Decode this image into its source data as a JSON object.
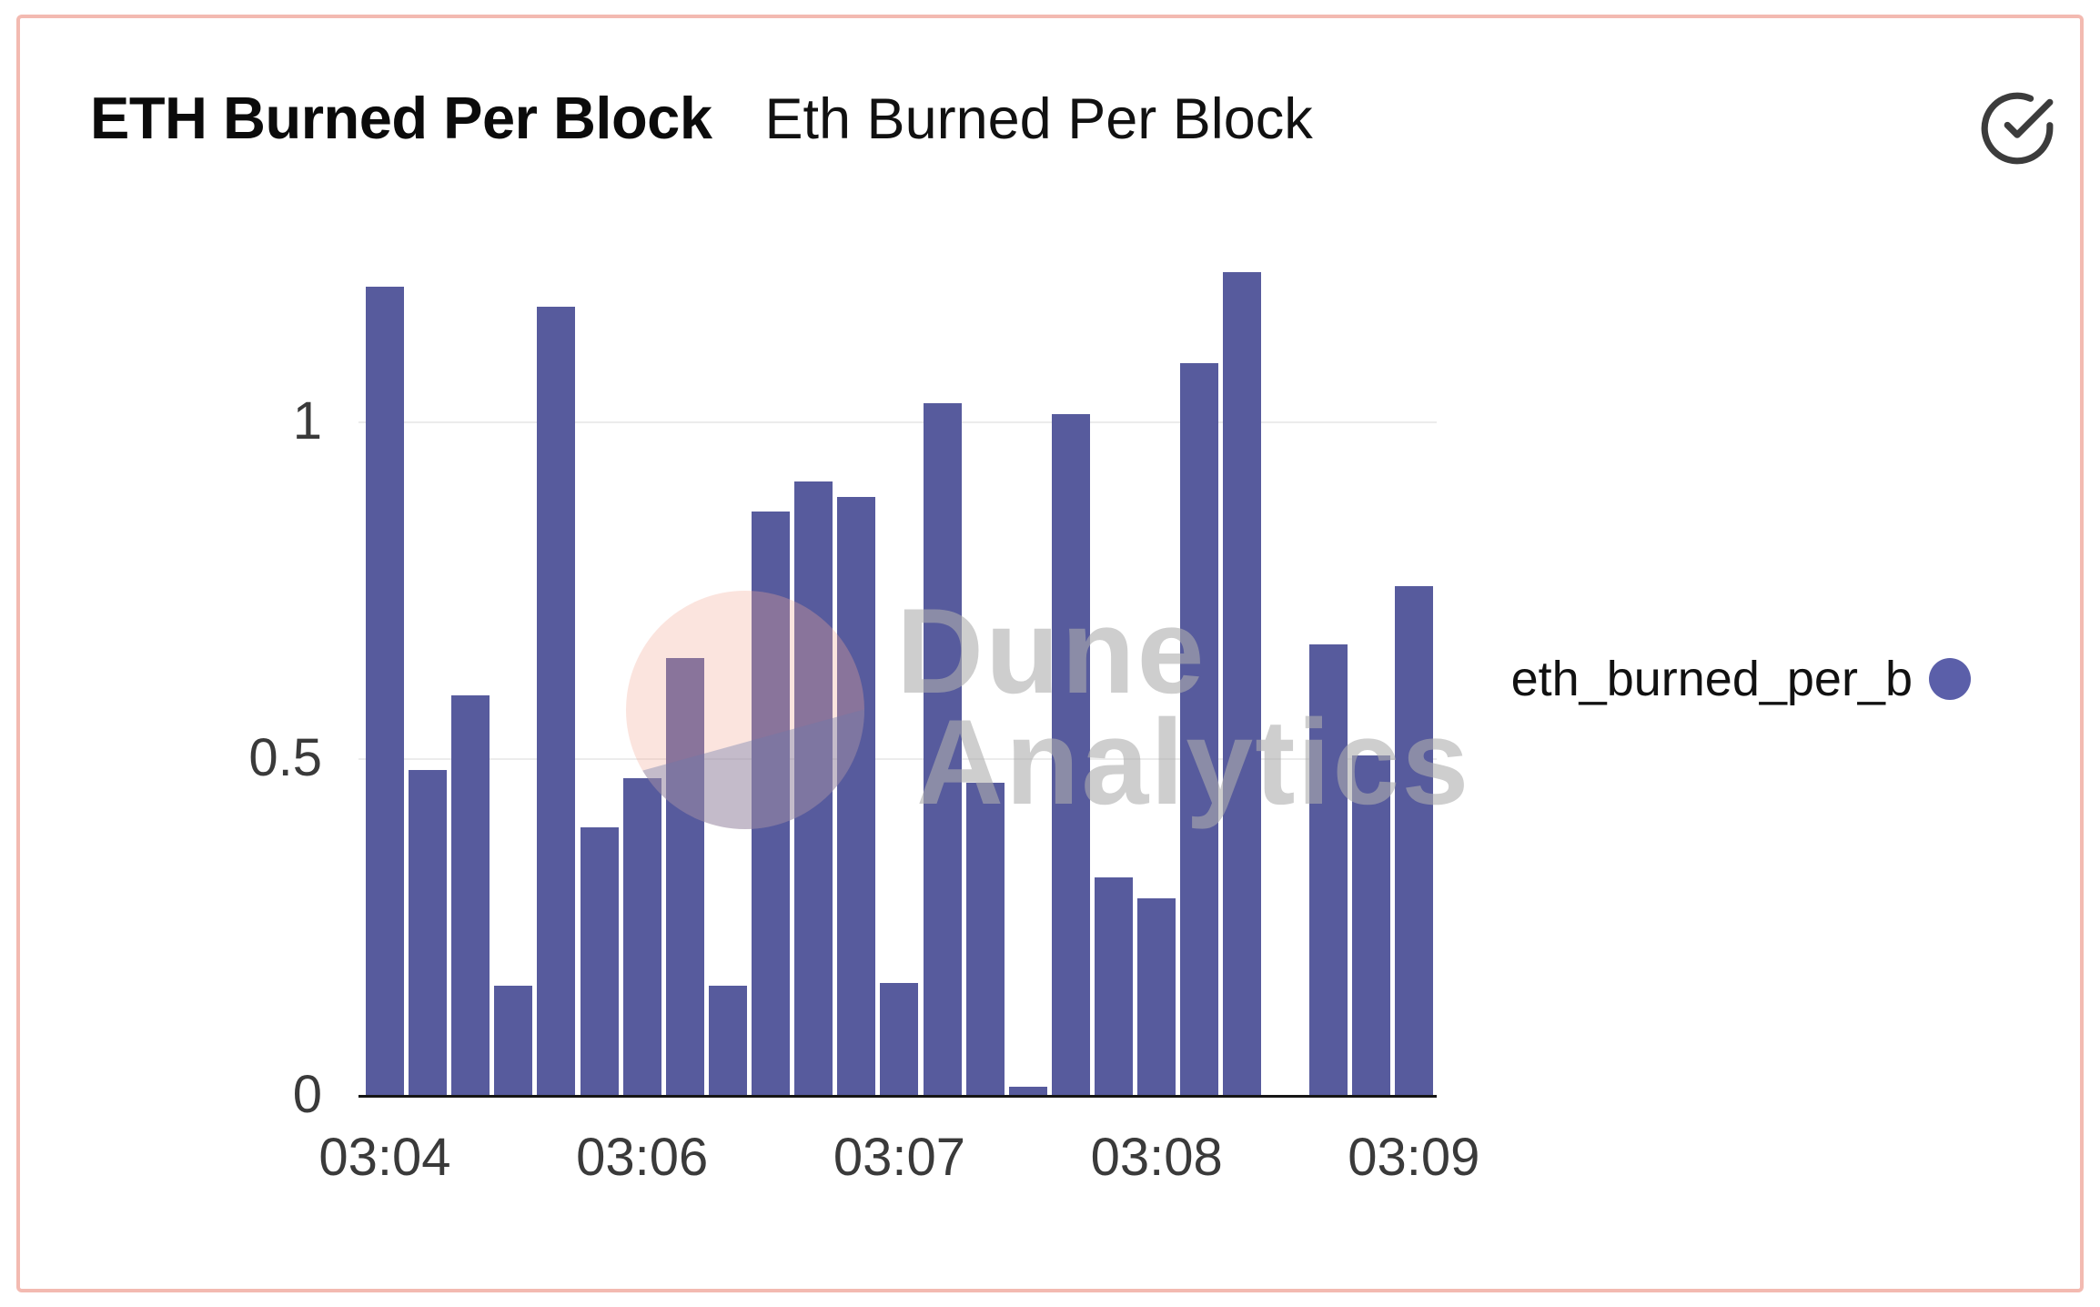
{
  "header": {
    "title": "ETH Burned Per Block",
    "subtitle": "Eth Burned Per Block"
  },
  "legend": {
    "label": "eth_burned_per_b",
    "dot_color": "#5b5fa9"
  },
  "watermark": {
    "line1": "Dune",
    "line2": "Analytics"
  },
  "colors": {
    "bar": "#575b9d",
    "card_border": "#f3bab1",
    "axis": "#161616",
    "grid": "#ececec",
    "tick_text": "#3a3a3a",
    "legend_dot": "#5b5fa9",
    "watermark_pink": "rgba(243,170,152,0.32)",
    "watermark_blue": "rgba(108,122,170,0.38)",
    "watermark_text": "rgba(174,174,174,0.60)"
  },
  "chart_data": {
    "type": "bar",
    "title": "ETH Burned Per Block",
    "xlabel": "",
    "ylabel": "",
    "ylim": [
      0,
      1.25
    ],
    "grid": "horizontal",
    "legend_position": "right",
    "series_label": "eth_burned_per_b",
    "values": [
      1.2,
      0.483,
      0.593,
      0.162,
      1.17,
      0.397,
      0.47,
      0.649,
      0.162,
      0.866,
      0.911,
      0.888,
      0.166,
      1.027,
      0.464,
      0.012,
      1.011,
      0.323,
      0.292,
      1.086,
      1.221,
      0,
      0.669,
      0.504,
      0.755
    ],
    "y_ticks": [
      {
        "value": 0,
        "label": "0"
      },
      {
        "value": 0.5,
        "label": "0.5"
      },
      {
        "value": 1,
        "label": "1"
      }
    ],
    "gridline_values": [
      0.5,
      1
    ],
    "x_tick_labels": [
      "03:04",
      "03:06",
      "03:07",
      "03:08",
      "03:09"
    ],
    "x_tick_slots": [
      0,
      6,
      12,
      18,
      24
    ]
  }
}
